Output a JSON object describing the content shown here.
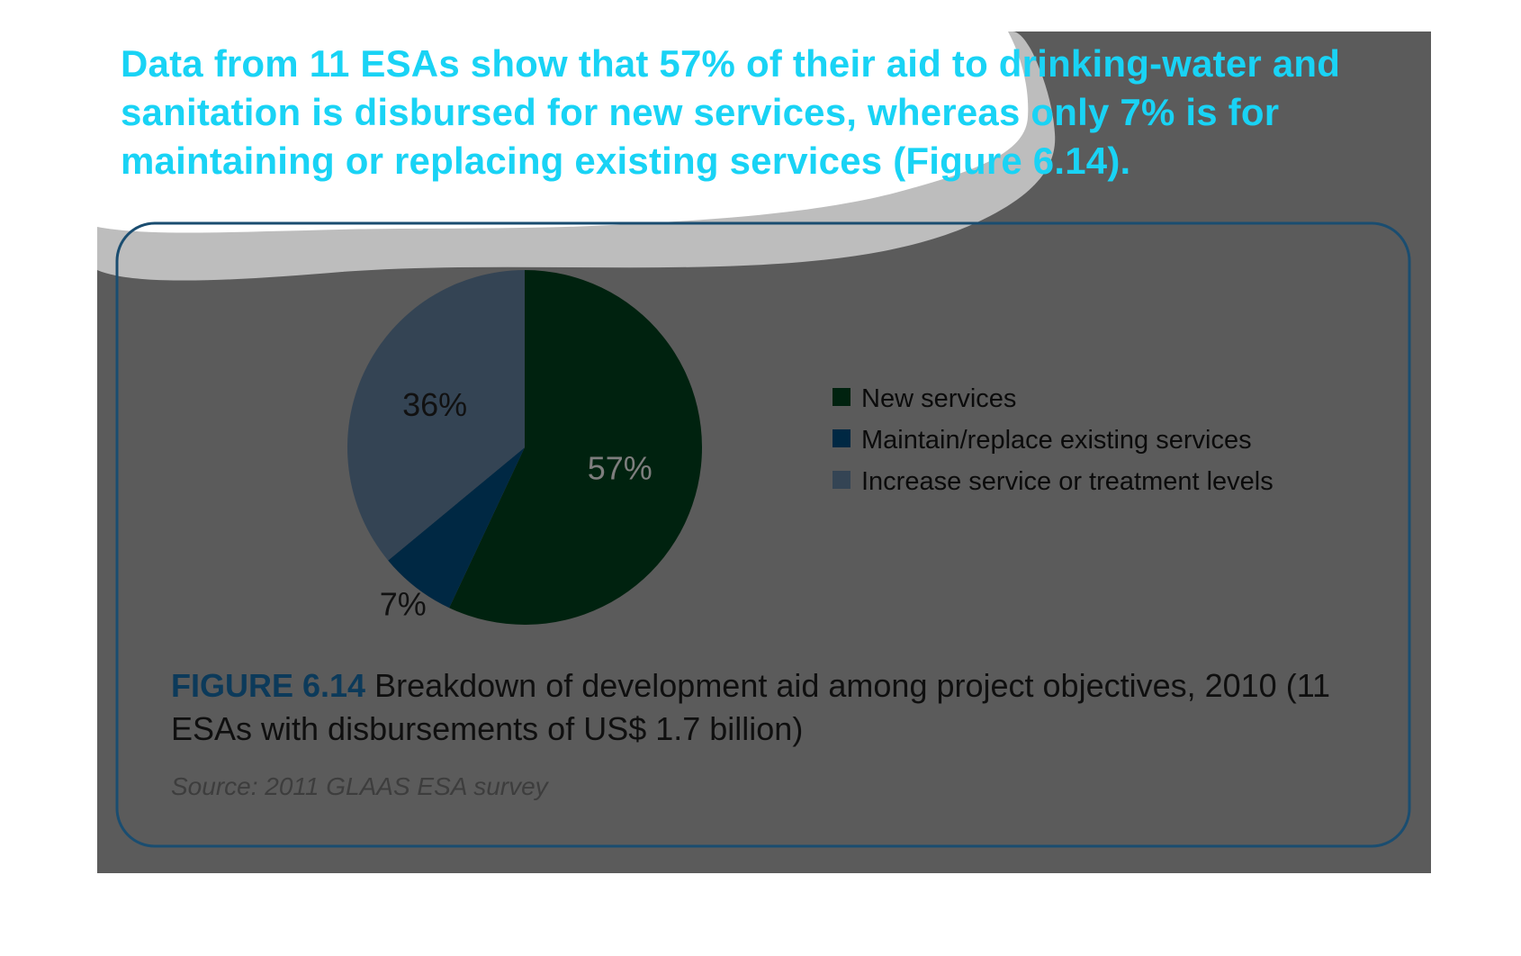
{
  "headline": "Data from 11 ESAs show that 57% of their aid to drinking-water and sanitation is disbursed for new services, whereas only 7% is for maintaining or replacing existing services (Figure 6.14).",
  "colors": {
    "headline": "#19d3f5",
    "new_services": "#00220f",
    "maintain_replace": "#002843",
    "increase_levels": "#344454",
    "box_border": "#1a4d70",
    "figure_label": "#0c3a5a"
  },
  "chart_data": {
    "type": "pie",
    "categories": [
      "New services",
      "Maintain/replace existing services",
      "Increase service or treatment levels"
    ],
    "values": [
      57,
      7,
      36
    ],
    "value_labels": [
      "57%",
      "7%",
      "36%"
    ],
    "legend_placement": "right"
  },
  "caption": {
    "figure_label": "FIGURE 6.14",
    "text": " Breakdown of development aid among project objectives, 2010 (11 ESAs with disbursements of US$ 1.7 billion)",
    "source": "Source: 2011 GLAAS ESA survey"
  }
}
